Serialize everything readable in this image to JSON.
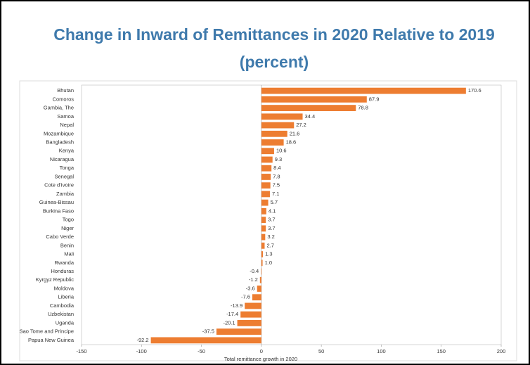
{
  "chart_data": {
    "type": "barh",
    "title": "Change in Inward of Remittances in 2020 Relative to 2019",
    "subtitle": "(percent)",
    "xlabel": "Total remittance growth in 2020",
    "categories": [
      "Bhutan",
      "Comoros",
      "Gambia, The",
      "Samoa",
      "Nepal",
      "Mozambique",
      "Bangladesh",
      "Kenya",
      "Nicaragua",
      "Tonga",
      "Senegal",
      "Cote d'Ivoire",
      "Zambia",
      "Guinea-Bissau",
      "Burkina Faso",
      "Togo",
      "Niger",
      "Cabo Verde",
      "Benin",
      "Mali",
      "Rwanda",
      "Honduras",
      "Kyrgyz Republic",
      "Moldova",
      "Liberia",
      "Cambodia",
      "Uzbekistan",
      "Uganda",
      "Sao Tome and Principe",
      "Papua New Guinea"
    ],
    "values": [
      170.6,
      87.9,
      78.8,
      34.4,
      27.2,
      21.6,
      18.6,
      10.6,
      9.3,
      8.4,
      7.8,
      7.5,
      7.1,
      5.7,
      4.1,
      3.7,
      3.7,
      3.2,
      2.7,
      1.3,
      1,
      -0.4,
      -1.2,
      -3.6,
      -7.6,
      -13.9,
      -17.4,
      -20.1,
      -37.5,
      -92.2
    ],
    "value_labels": [
      "170.6",
      "87.9",
      "78.8",
      "34.4",
      "27.2",
      "21.6",
      "18.6",
      "10.6",
      "9.3",
      "8.4",
      "7.8",
      "7.5",
      "7.1",
      "5.7",
      "4.1",
      "3.7",
      "3.7",
      "3.2",
      "2.7",
      "1.3",
      "1.0",
      "-0.4",
      "-1.2",
      "-3.6",
      "-7.6",
      "-13.9",
      "-17.4",
      "-20.1",
      "-37.5",
      "-92.2"
    ],
    "color": "#ed7d31",
    "xlim": [
      -150,
      200
    ],
    "xticks": [
      -150,
      -100,
      -50,
      0,
      50,
      100,
      150,
      200
    ]
  }
}
